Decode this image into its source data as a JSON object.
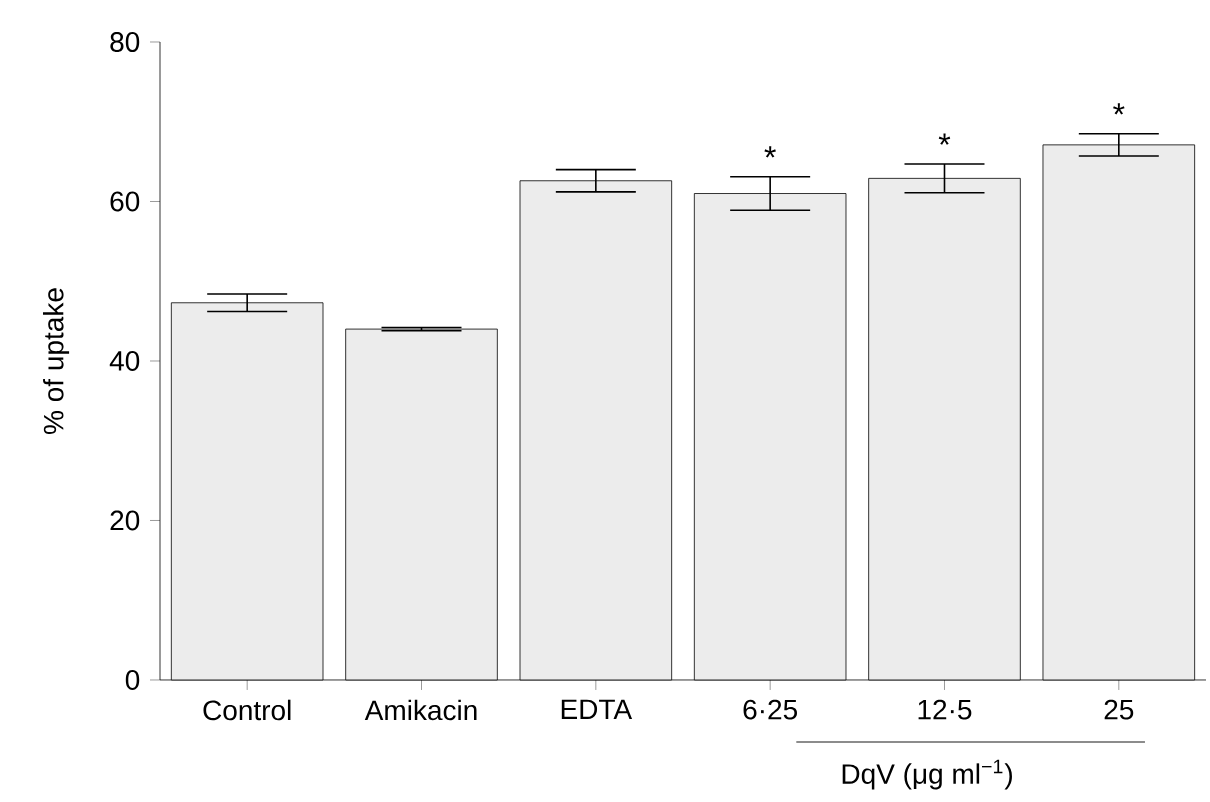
{
  "chart_data": {
    "type": "bar",
    "ylabel": "% of uptake",
    "xlabel": "DqV (μg ml$^{−1}$)",
    "categories": [
      "Control",
      "Amikacin",
      "EDTA",
      "6·25",
      "12·5",
      "25"
    ],
    "values": [
      47.3,
      44.0,
      62.6,
      61.0,
      62.9,
      67.1
    ],
    "errors": [
      1.1,
      0.2,
      1.4,
      2.1,
      1.8,
      1.4
    ],
    "color": "#ececec",
    "ylim": [
      0,
      80
    ],
    "yticks": [
      0,
      20,
      40,
      60,
      80
    ],
    "grid": false,
    "annotations": [
      "*",
      "*",
      "*"
    ]
  }
}
